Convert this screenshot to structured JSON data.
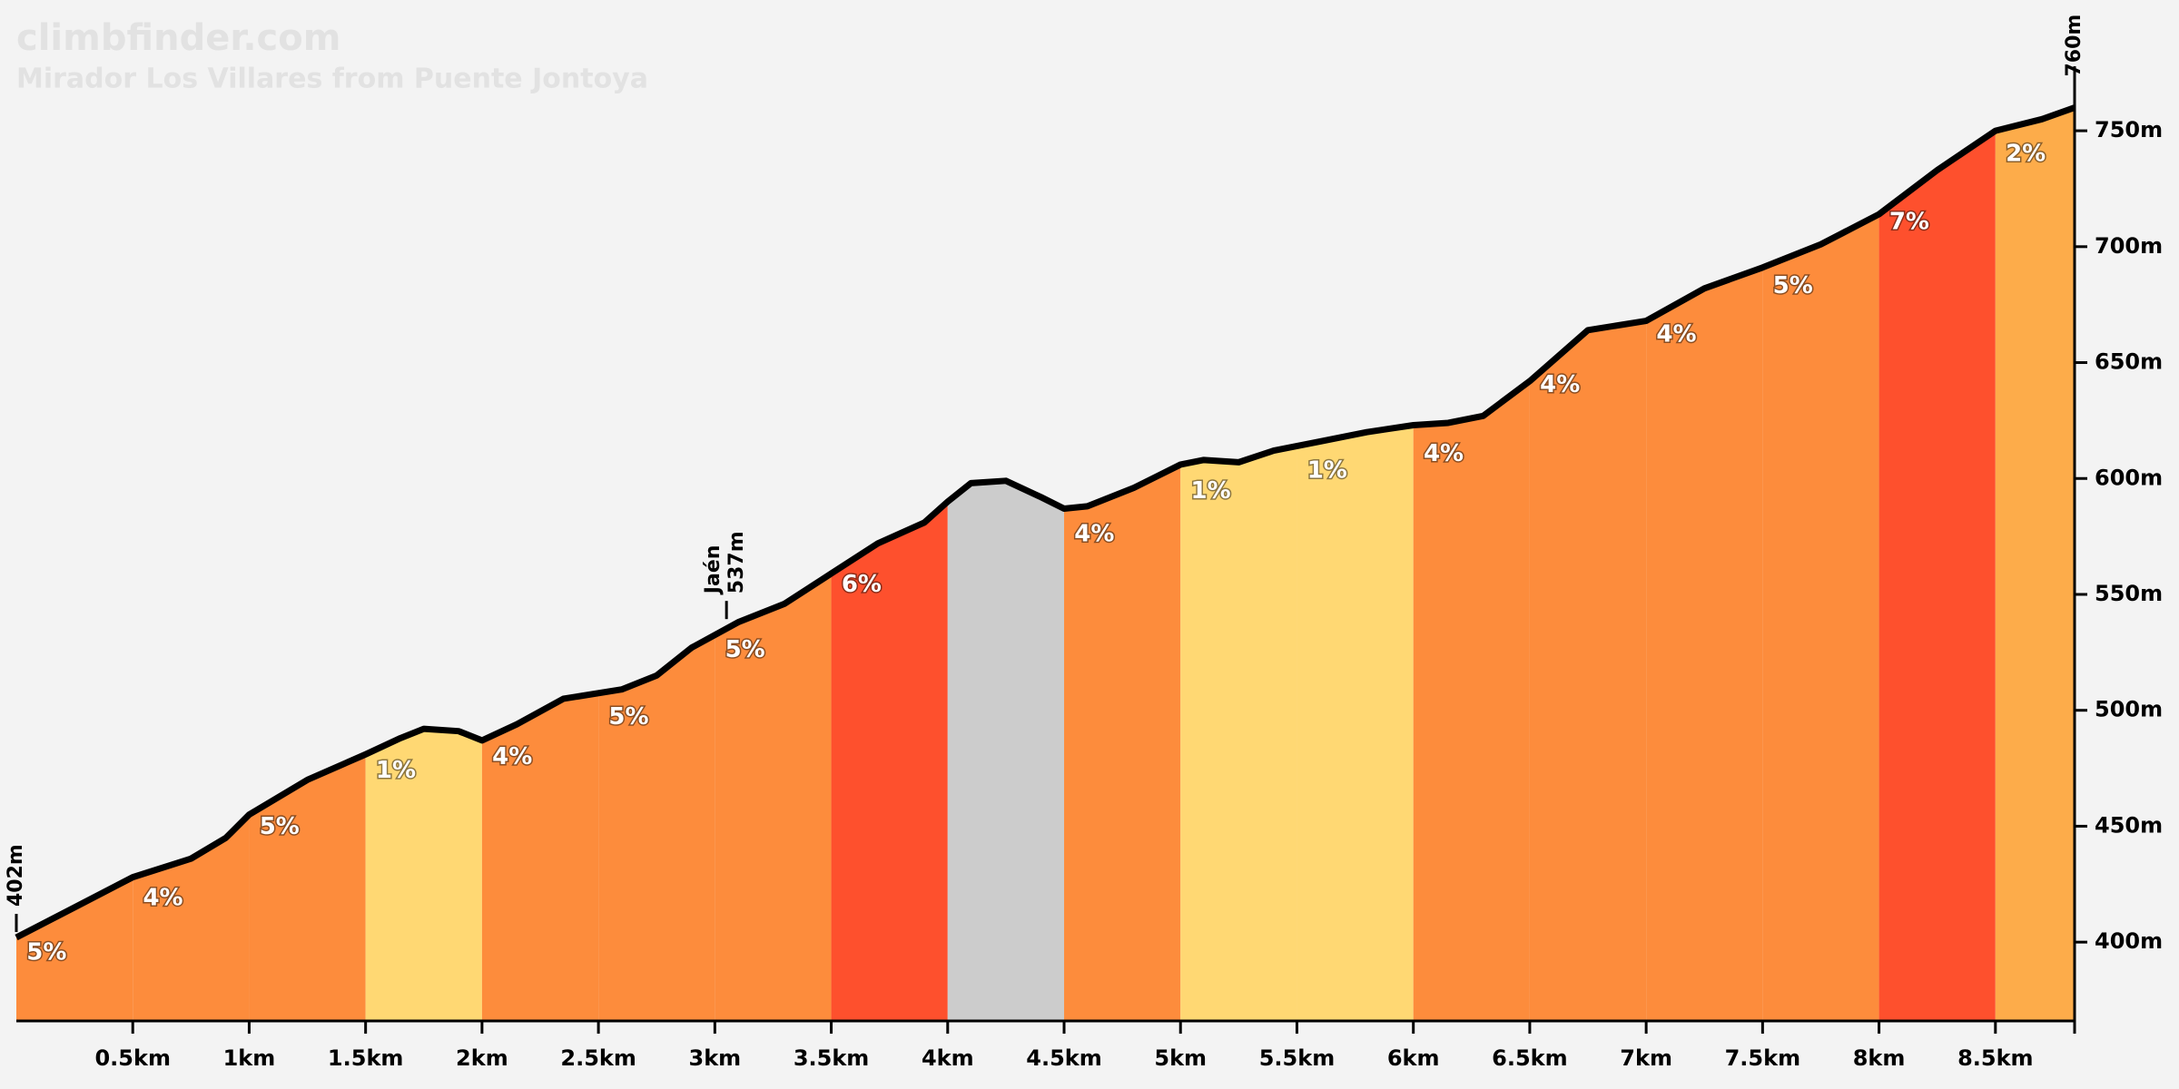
{
  "chart_data": {
    "type": "elevation-profile",
    "title": "climbfinder.com",
    "subtitle": "Mirador Los Villares from Puente Jontoya",
    "profile": {
      "x": [
        0,
        0.25,
        0.5,
        0.75,
        0.9,
        1.0,
        1.25,
        1.5,
        1.65,
        1.75,
        1.9,
        2.0,
        2.15,
        2.35,
        2.6,
        2.75,
        2.9,
        3.1,
        3.3,
        3.5,
        3.7,
        3.9,
        4.0,
        4.1,
        4.25,
        4.4,
        4.5,
        4.6,
        4.8,
        5.0,
        5.1,
        5.25,
        5.4,
        5.6,
        5.8,
        6.0,
        6.15,
        6.3,
        6.5,
        6.75,
        7.0,
        7.25,
        7.5,
        7.75,
        8.0,
        8.25,
        8.5,
        8.7,
        8.84
      ],
      "y": [
        402,
        415,
        428,
        436,
        445,
        455,
        470,
        481,
        488,
        492,
        491,
        487,
        494,
        505,
        509,
        515,
        527,
        538,
        546,
        559,
        572,
        581,
        590,
        598,
        599,
        592,
        587,
        588,
        596,
        606,
        608,
        607,
        612,
        616,
        620,
        623,
        624,
        627,
        642,
        664,
        668,
        682,
        691,
        701,
        714,
        733,
        750,
        755,
        760
      ]
    },
    "segment_edges": [
      0,
      0.5,
      1,
      1.5,
      2,
      2.5,
      3,
      3.5,
      4,
      4.5,
      5,
      5.5,
      6,
      6.5,
      7,
      7.5,
      8,
      8.5,
      8.84
    ],
    "gradients": [
      5,
      4,
      5,
      1,
      4,
      5,
      5,
      6,
      null,
      4,
      1,
      1,
      4,
      4,
      4,
      5,
      7,
      2
    ],
    "value_labels": [
      "5%",
      "4%",
      "5%",
      "1%",
      "4%",
      "5%",
      "5%",
      "6%",
      null,
      "4%",
      "1%",
      "1%",
      "4%",
      "4%",
      "4%",
      "5%",
      "7%",
      "2%"
    ],
    "colors": [
      "#fd8c3c",
      "#fd8c3c",
      "#fd8c3c",
      "#ffd873",
      "#fd8c3c",
      "#fd8c3c",
      "#fd8c3c",
      "#fe502d",
      "#cccccc",
      "#fd8c3c",
      "#ffd873",
      "#ffd873",
      "#fd8c3c",
      "#fd8c3c",
      "#fd8c3c",
      "#fd8c3c",
      "#fe502d",
      "#fdac4a"
    ],
    "annotations": [
      {
        "x": 0,
        "y": 402,
        "label": "402m"
      },
      {
        "x": 3.05,
        "y": 537,
        "text": "Jaén",
        "label": "537m"
      },
      {
        "x": 8.84,
        "y": 760,
        "label": "760m"
      }
    ],
    "xlim": [
      0,
      8.84
    ],
    "ylim": [
      366,
      770
    ],
    "xticks": [
      {
        "value": 0.5,
        "label": "0.5km"
      },
      {
        "value": 1,
        "label": "1km"
      },
      {
        "value": 1.5,
        "label": "1.5km"
      },
      {
        "value": 2,
        "label": "2km"
      },
      {
        "value": 2.5,
        "label": "2.5km"
      },
      {
        "value": 3,
        "label": "3km"
      },
      {
        "value": 3.5,
        "label": "3.5km"
      },
      {
        "value": 4,
        "label": "4km"
      },
      {
        "value": 4.5,
        "label": "4.5km"
      },
      {
        "value": 5,
        "label": "5km"
      },
      {
        "value": 5.5,
        "label": "5.5km"
      },
      {
        "value": 6,
        "label": "6km"
      },
      {
        "value": 6.5,
        "label": "6.5km"
      },
      {
        "value": 7,
        "label": "7km"
      },
      {
        "value": 7.5,
        "label": "7.5km"
      },
      {
        "value": 8,
        "label": "8km"
      },
      {
        "value": 8.5,
        "label": "8.5km"
      }
    ],
    "yticks": [
      {
        "value": 400,
        "label": "400m"
      },
      {
        "value": 450,
        "label": "450m"
      },
      {
        "value": 500,
        "label": "500m"
      },
      {
        "value": 550,
        "label": "550m"
      },
      {
        "value": 600,
        "label": "600m"
      },
      {
        "value": 650,
        "label": "650m"
      },
      {
        "value": 700,
        "label": "700m"
      },
      {
        "value": 750,
        "label": "750m"
      }
    ],
    "line_color": "#000000"
  }
}
